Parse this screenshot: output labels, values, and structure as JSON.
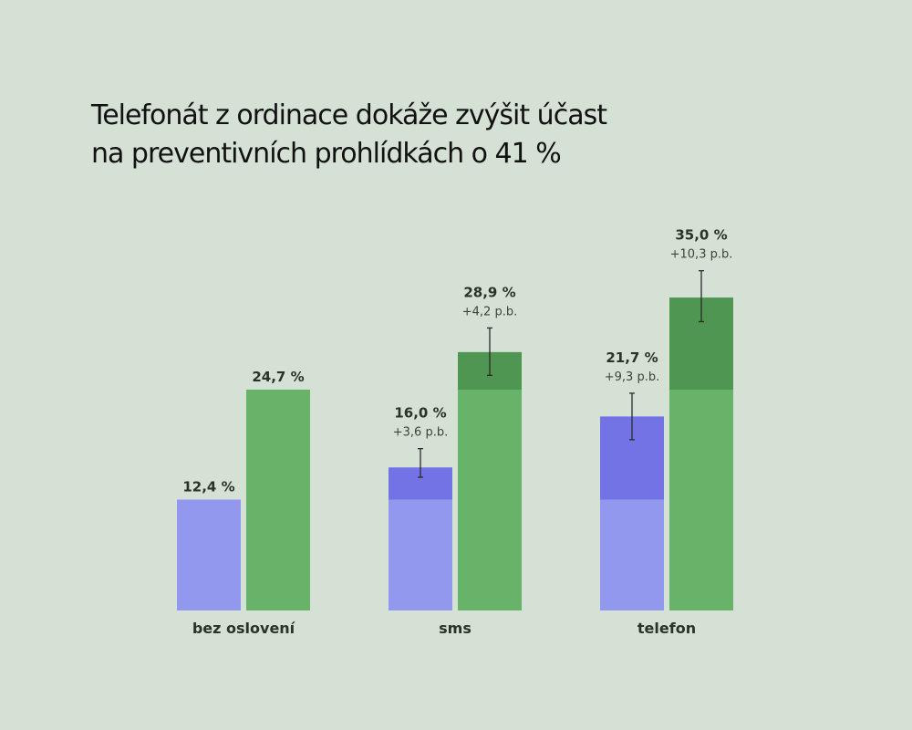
{
  "colors": {
    "background": "#d6e1d5",
    "purple_base": "#9198ee",
    "purple_increase": "#7373e6",
    "green_base": "#68b36a",
    "green_increase": "#4e9652",
    "error_bar": "#2b2b2b"
  },
  "chart_data": {
    "type": "bar",
    "title": "Telefonát z ordinace dokáže zvýšit účast\nna preventivních prohlídkách o 41 %",
    "xlabel": "",
    "ylabel": "",
    "ylim": [
      0,
      40
    ],
    "grid": false,
    "categories": [
      "bez oslovení",
      "sms",
      "telefon"
    ],
    "baseline": [
      12.4,
      24.7
    ],
    "series": [
      {
        "values": [
          12.4,
          16.0,
          21.7
        ],
        "value_labels": [
          "12,4 %",
          "16,0 %",
          "21,7 %"
        ],
        "increase_labels": [
          "",
          "+3,6 p.b.",
          "+9,3 p.b."
        ],
        "error_low": [
          null,
          14.9,
          19.1
        ],
        "error_high": [
          null,
          18.1,
          24.3
        ]
      },
      {
        "values": [
          24.7,
          28.9,
          35.0
        ],
        "value_labels": [
          "24,7 %",
          "28,9 %",
          "35,0 %"
        ],
        "increase_labels": [
          "",
          "+4,2 p.b.",
          "+10,3 p.b."
        ],
        "error_low": [
          null,
          26.3,
          32.3
        ],
        "error_high": [
          null,
          31.6,
          38.0
        ]
      }
    ]
  }
}
